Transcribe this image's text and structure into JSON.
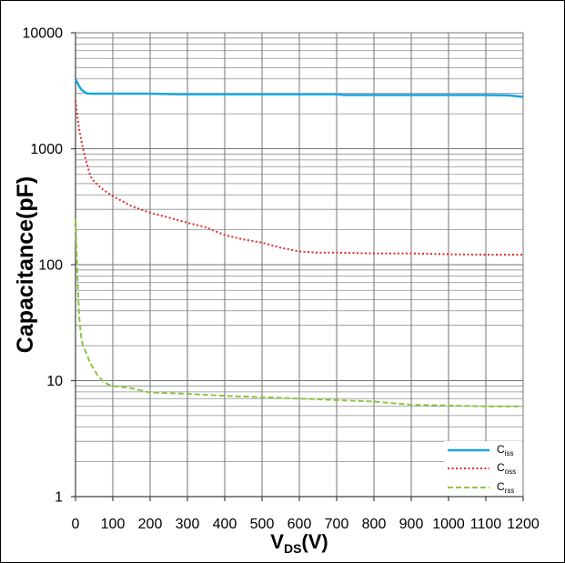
{
  "chart_data": {
    "type": "line",
    "title": "",
    "ylabel": "Capacitance(pF)",
    "xlabel": {
      "base": "V",
      "sub": "DS",
      "suffix": "(V)"
    },
    "xlim": [
      0,
      1200
    ],
    "ylim": [
      1,
      10000
    ],
    "yscale": "log",
    "x_ticks": [
      0,
      100,
      200,
      300,
      400,
      500,
      600,
      700,
      800,
      900,
      1000,
      1100,
      1200
    ],
    "y_ticks": [
      1,
      10,
      100,
      1000,
      10000
    ],
    "grid": {
      "x_major": true,
      "y_major": true,
      "y_minor": true
    },
    "legend_position": "bottom-right",
    "series": [
      {
        "label": {
          "base": "C",
          "sub": "iss"
        },
        "color": "#1ca5e0",
        "line_style": "solid",
        "x": [
          0,
          5,
          10,
          15,
          20,
          30,
          40,
          100,
          200,
          280,
          400,
          500,
          600,
          700,
          720,
          800,
          900,
          1000,
          1100,
          1160,
          1200
        ],
        "values": [
          4000,
          3700,
          3450,
          3250,
          3150,
          3000,
          2980,
          2980,
          2980,
          2950,
          2950,
          2950,
          2950,
          2950,
          2900,
          2900,
          2900,
          2900,
          2900,
          2880,
          2800
        ]
      },
      {
        "label": {
          "base": "C",
          "sub": "oss"
        },
        "color": "#e02b2b",
        "line_style": "dotted",
        "x": [
          0,
          5,
          10,
          15,
          20,
          30,
          40,
          50,
          75,
          100,
          150,
          200,
          250,
          300,
          350,
          400,
          450,
          500,
          550,
          600,
          650,
          700,
          800,
          900,
          1000,
          1100,
          1200
        ],
        "values": [
          2600,
          1900,
          1450,
          1200,
          1000,
          750,
          580,
          520,
          440,
          390,
          320,
          280,
          255,
          230,
          210,
          180,
          165,
          155,
          140,
          130,
          127,
          127,
          125,
          125,
          123,
          122,
          122
        ]
      },
      {
        "label": {
          "base": "C",
          "sub": "rss"
        },
        "color": "#8cc640",
        "line_style": "dashed",
        "x": [
          0,
          5,
          10,
          15,
          20,
          30,
          40,
          50,
          60,
          75,
          90,
          100,
          150,
          200,
          300,
          400,
          500,
          600,
          700,
          800,
          900,
          1000,
          1100,
          1200
        ],
        "values": [
          250,
          80,
          35,
          24,
          20,
          17,
          14,
          12.5,
          11,
          9.8,
          9.2,
          9,
          8.6,
          7.9,
          7.7,
          7.4,
          7.2,
          7,
          6.8,
          6.6,
          6.2,
          6.1,
          6,
          6
        ]
      }
    ]
  }
}
